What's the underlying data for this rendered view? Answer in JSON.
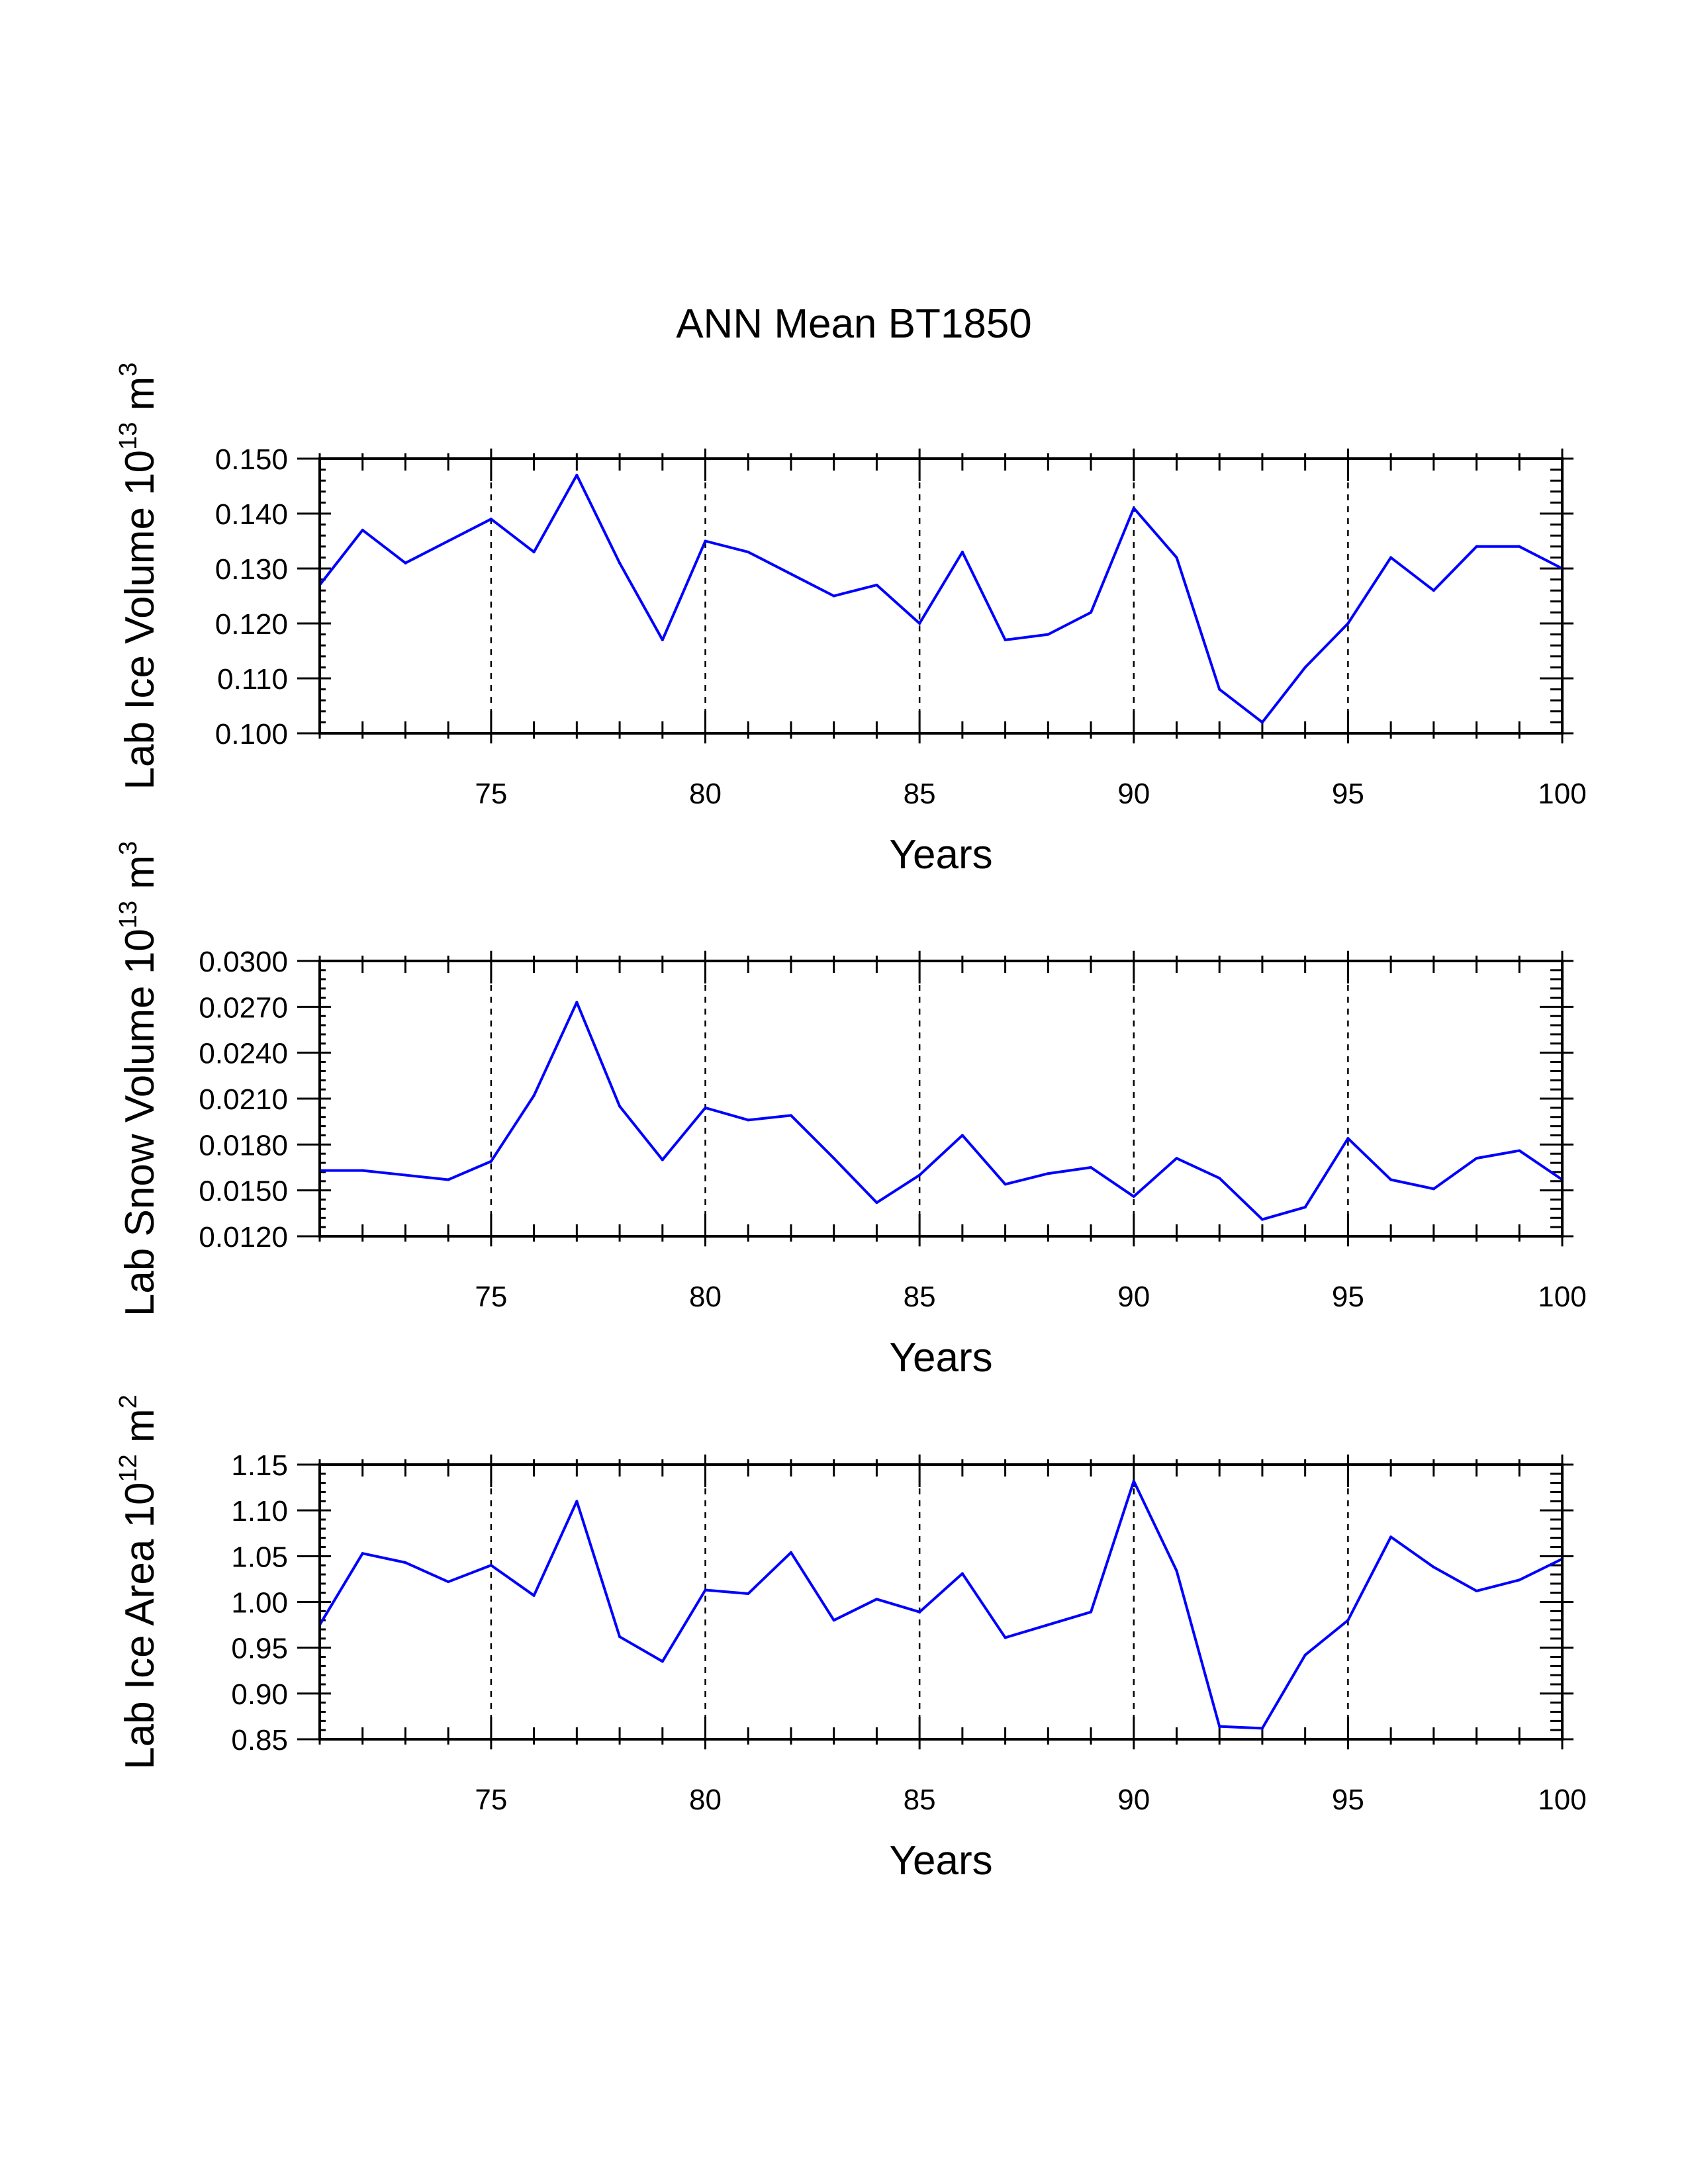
{
  "title": "ANN Mean BT1850",
  "colors": {
    "line": "#0000ff",
    "axes": "#000000",
    "background": "#ffffff"
  },
  "chart_data": [
    {
      "type": "line",
      "ylabel_main": "Lab Ice Volume 10",
      "ylabel_exp": "13",
      "ylabel_unit": " m",
      "ylabel_unit_exp": "3",
      "xlabel": "Years",
      "xlim": [
        71,
        100
      ],
      "ylim": [
        0.1,
        0.15
      ],
      "yticks": [
        "0.100",
        "0.110",
        "0.120",
        "0.130",
        "0.140",
        "0.150"
      ],
      "xticks": [
        "75",
        "80",
        "85",
        "90",
        "95",
        "100"
      ],
      "vertical_dashed_lines_at": [
        75,
        80,
        85,
        90,
        95
      ],
      "x": [
        71,
        72,
        73,
        74,
        75,
        76,
        77,
        78,
        79,
        80,
        81,
        82,
        83,
        84,
        85,
        86,
        87,
        88,
        89,
        90,
        91,
        92,
        93,
        94,
        95,
        96,
        97,
        98,
        99,
        100
      ],
      "values": [
        0.127,
        0.137,
        0.131,
        0.135,
        0.139,
        0.133,
        0.147,
        0.131,
        0.117,
        0.135,
        0.133,
        0.129,
        0.125,
        0.127,
        0.12,
        0.133,
        0.117,
        0.118,
        0.122,
        0.141,
        0.132,
        0.108,
        0.102,
        0.112,
        0.12,
        0.132,
        0.126,
        0.134,
        0.134,
        0.13
      ]
    },
    {
      "type": "line",
      "ylabel_main": "Lab Snow Volume 10",
      "ylabel_exp": "13",
      "ylabel_unit": " m",
      "ylabel_unit_exp": "3",
      "xlabel": "Years",
      "xlim": [
        71,
        100
      ],
      "ylim": [
        0.012,
        0.03
      ],
      "yticks": [
        "0.0120",
        "0.0150",
        "0.0180",
        "0.0210",
        "0.0240",
        "0.0270",
        "0.0300"
      ],
      "xticks": [
        "75",
        "80",
        "85",
        "90",
        "95",
        "100"
      ],
      "vertical_dashed_lines_at": [
        75,
        80,
        85,
        90,
        95
      ],
      "x": [
        71,
        72,
        73,
        74,
        75,
        76,
        77,
        78,
        79,
        80,
        81,
        82,
        83,
        84,
        85,
        86,
        87,
        88,
        89,
        90,
        91,
        92,
        93,
        94,
        95,
        96,
        97,
        98,
        99,
        100
      ],
      "values": [
        0.0163,
        0.0163,
        0.016,
        0.0157,
        0.0169,
        0.0212,
        0.0273,
        0.0205,
        0.017,
        0.0204,
        0.0196,
        0.0199,
        0.0171,
        0.0142,
        0.016,
        0.0186,
        0.0154,
        0.0161,
        0.0165,
        0.0146,
        0.0171,
        0.0158,
        0.0131,
        0.0139,
        0.0184,
        0.0157,
        0.0151,
        0.0171,
        0.0176,
        0.0157
      ]
    },
    {
      "type": "line",
      "ylabel_main": "Lab Ice Area 10",
      "ylabel_exp": "12",
      "ylabel_unit": " m",
      "ylabel_unit_exp": "2",
      "xlabel": "Years",
      "xlim": [
        71,
        100
      ],
      "ylim": [
        0.85,
        1.15
      ],
      "yticks": [
        "0.85",
        "0.90",
        "0.95",
        "1.00",
        "1.05",
        "1.10",
        "1.15"
      ],
      "xticks": [
        "75",
        "80",
        "85",
        "90",
        "95",
        "100"
      ],
      "vertical_dashed_lines_at": [
        75,
        80,
        85,
        90,
        95
      ],
      "x": [
        71,
        72,
        73,
        74,
        75,
        76,
        77,
        78,
        79,
        80,
        81,
        82,
        83,
        84,
        85,
        86,
        87,
        88,
        89,
        90,
        91,
        92,
        93,
        94,
        95,
        96,
        97,
        98,
        99,
        100
      ],
      "values": [
        0.975,
        1.053,
        1.043,
        1.022,
        1.04,
        1.007,
        1.11,
        0.962,
        0.935,
        1.013,
        1.009,
        1.054,
        0.98,
        1.003,
        0.989,
        1.031,
        0.961,
        0.975,
        0.989,
        1.132,
        1.034,
        0.864,
        0.862,
        0.942,
        0.98,
        1.071,
        1.038,
        1.012,
        1.024,
        1.047
      ]
    }
  ]
}
